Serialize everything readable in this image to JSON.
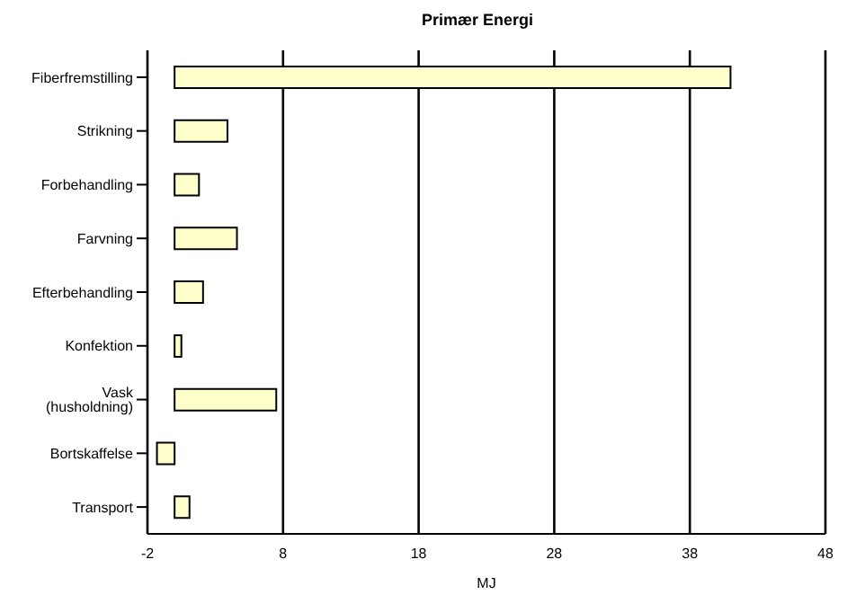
{
  "chart_data": {
    "type": "bar",
    "orientation": "horizontal",
    "title": "Primær Energi",
    "xlabel": "MJ",
    "categories": [
      "Fiberfremstilling",
      "Strikning",
      "Forbehandling",
      "Farvning",
      "Efterbehandling",
      "Konfektion",
      "Vask (husholdning)",
      "Bortskaffelse",
      "Transport"
    ],
    "values": [
      41.0,
      3.9,
      1.8,
      4.6,
      2.1,
      0.5,
      7.5,
      -1.3,
      1.1
    ],
    "color": "#ffffcc",
    "xlim": [
      -2,
      48
    ],
    "xticks": [
      -2,
      8,
      18,
      28,
      38,
      48
    ],
    "grid": "x"
  }
}
